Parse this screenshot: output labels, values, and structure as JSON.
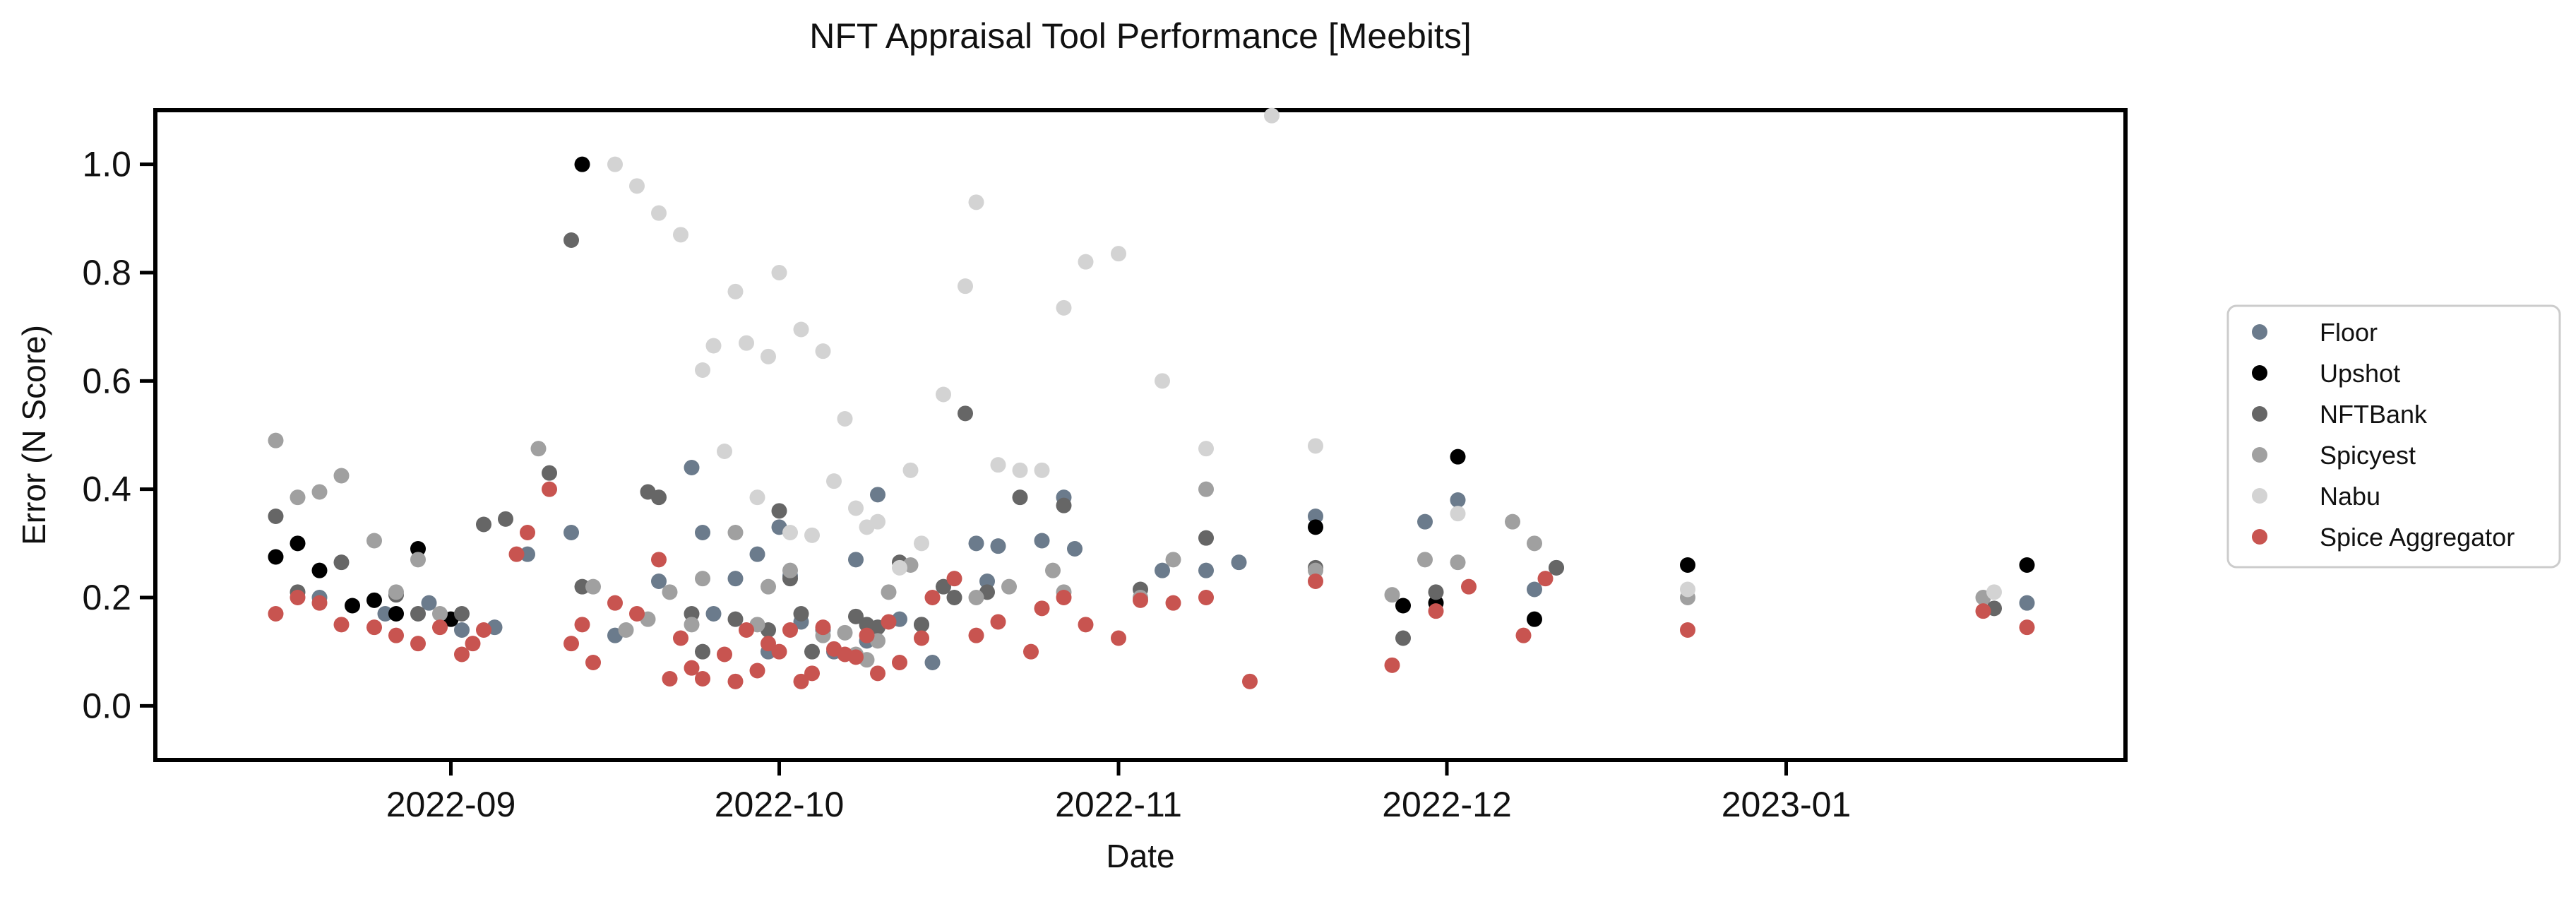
{
  "chart_data": {
    "type": "scatter",
    "title": "NFT Appraisal Tool Performance [Meebits]",
    "xlabel": "Date",
    "ylabel": "Error (N Score)",
    "xlim": [
      "2022-08-05",
      "2023-02-01"
    ],
    "ylim": [
      -0.1,
      1.1
    ],
    "x_ticks": [
      "2022-09-01",
      "2022-10-01",
      "2022-11-01",
      "2022-12-01",
      "2023-01-01"
    ],
    "x_tick_labels": [
      "2022-09",
      "2022-10",
      "2022-11",
      "2022-12",
      "2023-01"
    ],
    "y_ticks": [
      0.0,
      0.2,
      0.4,
      0.6,
      0.8,
      1.0
    ],
    "y_tick_labels": [
      "0.0",
      "0.2",
      "0.4",
      "0.6",
      "0.8",
      "1.0"
    ],
    "grid": false,
    "legend_position": "outside-right",
    "series": [
      {
        "name": "Floor",
        "color": "#6b7b8c",
        "points": [
          [
            "2022-08-20",
            0.2
          ],
          [
            "2022-08-26",
            0.17
          ],
          [
            "2022-08-30",
            0.19
          ],
          [
            "2022-09-02",
            0.14
          ],
          [
            "2022-09-05",
            0.145
          ],
          [
            "2022-09-08",
            0.28
          ],
          [
            "2022-09-12",
            0.32
          ],
          [
            "2022-09-16",
            0.13
          ],
          [
            "2022-09-20",
            0.23
          ],
          [
            "2022-09-23",
            0.44
          ],
          [
            "2022-09-24",
            0.32
          ],
          [
            "2022-09-25",
            0.17
          ],
          [
            "2022-09-27",
            0.235
          ],
          [
            "2022-09-29",
            0.28
          ],
          [
            "2022-09-30",
            0.1
          ],
          [
            "2022-10-01",
            0.33
          ],
          [
            "2022-10-02",
            0.24
          ],
          [
            "2022-10-03",
            0.155
          ],
          [
            "2022-10-05",
            0.14
          ],
          [
            "2022-10-06",
            0.1
          ],
          [
            "2022-10-08",
            0.27
          ],
          [
            "2022-10-09",
            0.12
          ],
          [
            "2022-10-10",
            0.39
          ],
          [
            "2022-10-12",
            0.16
          ],
          [
            "2022-10-14",
            0.15
          ],
          [
            "2022-10-15",
            0.08
          ],
          [
            "2022-10-19",
            0.3
          ],
          [
            "2022-10-20",
            0.23
          ],
          [
            "2022-10-21",
            0.295
          ],
          [
            "2022-10-25",
            0.305
          ],
          [
            "2022-10-27",
            0.385
          ],
          [
            "2022-10-28",
            0.29
          ],
          [
            "2022-11-05",
            0.25
          ],
          [
            "2022-11-09",
            0.25
          ],
          [
            "2022-11-12",
            0.265
          ],
          [
            "2022-11-19",
            0.35
          ],
          [
            "2022-11-29",
            0.34
          ],
          [
            "2022-12-02",
            0.38
          ],
          [
            "2022-12-09",
            0.215
          ],
          [
            "2022-12-11",
            0.255
          ],
          [
            "2023-01-23",
            0.19
          ]
        ]
      },
      {
        "name": "Upshot",
        "color": "#000000",
        "points": [
          [
            "2022-08-16",
            0.275
          ],
          [
            "2022-08-18",
            0.3
          ],
          [
            "2022-08-20",
            0.25
          ],
          [
            "2022-08-23",
            0.185
          ],
          [
            "2022-08-25",
            0.195
          ],
          [
            "2022-08-27",
            0.17
          ],
          [
            "2022-08-29",
            0.29
          ],
          [
            "2022-09-01",
            0.16
          ],
          [
            "2022-09-13",
            1.0
          ],
          [
            "2022-11-19",
            0.33
          ],
          [
            "2022-11-27",
            0.185
          ],
          [
            "2022-11-30",
            0.19
          ],
          [
            "2022-12-02",
            0.46
          ],
          [
            "2022-12-09",
            0.16
          ],
          [
            "2022-12-23",
            0.26
          ],
          [
            "2023-01-23",
            0.26
          ]
        ]
      },
      {
        "name": "NFTBank",
        "color": "#666666",
        "points": [
          [
            "2022-08-16",
            0.35
          ],
          [
            "2022-08-18",
            0.21
          ],
          [
            "2022-08-22",
            0.265
          ],
          [
            "2022-08-27",
            0.205
          ],
          [
            "2022-08-29",
            0.17
          ],
          [
            "2022-09-02",
            0.17
          ],
          [
            "2022-09-04",
            0.335
          ],
          [
            "2022-09-06",
            0.345
          ],
          [
            "2022-09-10",
            0.43
          ],
          [
            "2022-09-12",
            0.86
          ],
          [
            "2022-09-13",
            0.22
          ],
          [
            "2022-09-19",
            0.395
          ],
          [
            "2022-09-20",
            0.385
          ],
          [
            "2022-09-23",
            0.17
          ],
          [
            "2022-09-24",
            0.1
          ],
          [
            "2022-09-27",
            0.16
          ],
          [
            "2022-09-30",
            0.14
          ],
          [
            "2022-10-01",
            0.36
          ],
          [
            "2022-10-02",
            0.235
          ],
          [
            "2022-10-03",
            0.17
          ],
          [
            "2022-10-04",
            0.1
          ],
          [
            "2022-10-08",
            0.165
          ],
          [
            "2022-10-09",
            0.15
          ],
          [
            "2022-10-10",
            0.145
          ],
          [
            "2022-10-12",
            0.265
          ],
          [
            "2022-10-14",
            0.15
          ],
          [
            "2022-10-16",
            0.22
          ],
          [
            "2022-10-17",
            0.2
          ],
          [
            "2022-10-18",
            0.54
          ],
          [
            "2022-10-20",
            0.21
          ],
          [
            "2022-10-23",
            0.385
          ],
          [
            "2022-10-27",
            0.37
          ],
          [
            "2022-11-03",
            0.215
          ],
          [
            "2022-11-09",
            0.31
          ],
          [
            "2022-11-19",
            0.255
          ],
          [
            "2022-11-27",
            0.125
          ],
          [
            "2022-11-30",
            0.21
          ],
          [
            "2022-12-11",
            0.255
          ],
          [
            "2023-01-20",
            0.18
          ]
        ]
      },
      {
        "name": "Spicyest",
        "color": "#a0a0a0",
        "points": [
          [
            "2022-08-16",
            0.49
          ],
          [
            "2022-08-18",
            0.385
          ],
          [
            "2022-08-20",
            0.395
          ],
          [
            "2022-08-22",
            0.425
          ],
          [
            "2022-08-25",
            0.305
          ],
          [
            "2022-08-27",
            0.21
          ],
          [
            "2022-08-29",
            0.27
          ],
          [
            "2022-08-31",
            0.17
          ],
          [
            "2022-09-09",
            0.475
          ],
          [
            "2022-09-14",
            0.22
          ],
          [
            "2022-09-17",
            0.14
          ],
          [
            "2022-09-19",
            0.16
          ],
          [
            "2022-09-21",
            0.21
          ],
          [
            "2022-09-23",
            0.15
          ],
          [
            "2022-09-24",
            0.235
          ],
          [
            "2022-09-27",
            0.32
          ],
          [
            "2022-09-29",
            0.15
          ],
          [
            "2022-09-30",
            0.22
          ],
          [
            "2022-10-02",
            0.25
          ],
          [
            "2022-10-05",
            0.13
          ],
          [
            "2022-10-07",
            0.135
          ],
          [
            "2022-10-08",
            0.095
          ],
          [
            "2022-10-09",
            0.085
          ],
          [
            "2022-10-10",
            0.12
          ],
          [
            "2022-10-11",
            0.21
          ],
          [
            "2022-10-13",
            0.26
          ],
          [
            "2022-10-19",
            0.2
          ],
          [
            "2022-10-22",
            0.22
          ],
          [
            "2022-10-26",
            0.25
          ],
          [
            "2022-10-27",
            0.21
          ],
          [
            "2022-11-03",
            0.2
          ],
          [
            "2022-11-06",
            0.27
          ],
          [
            "2022-11-09",
            0.4
          ],
          [
            "2022-11-19",
            0.25
          ],
          [
            "2022-11-26",
            0.205
          ],
          [
            "2022-11-29",
            0.27
          ],
          [
            "2022-12-02",
            0.265
          ],
          [
            "2022-12-07",
            0.34
          ],
          [
            "2022-12-09",
            0.3
          ],
          [
            "2022-12-23",
            0.2
          ],
          [
            "2023-01-19",
            0.2
          ]
        ]
      },
      {
        "name": "Nabu",
        "color": "#d3d3d3",
        "points": [
          [
            "2022-09-16",
            1.0
          ],
          [
            "2022-09-18",
            0.96
          ],
          [
            "2022-09-20",
            0.91
          ],
          [
            "2022-09-22",
            0.87
          ],
          [
            "2022-09-24",
            0.62
          ],
          [
            "2022-09-25",
            0.665
          ],
          [
            "2022-09-26",
            0.47
          ],
          [
            "2022-09-27",
            0.765
          ],
          [
            "2022-09-28",
            0.67
          ],
          [
            "2022-09-29",
            0.385
          ],
          [
            "2022-09-30",
            0.645
          ],
          [
            "2022-10-01",
            0.8
          ],
          [
            "2022-10-02",
            0.32
          ],
          [
            "2022-10-03",
            0.695
          ],
          [
            "2022-10-04",
            0.315
          ],
          [
            "2022-10-05",
            0.655
          ],
          [
            "2022-10-06",
            0.415
          ],
          [
            "2022-10-07",
            0.53
          ],
          [
            "2022-10-08",
            0.365
          ],
          [
            "2022-10-09",
            0.33
          ],
          [
            "2022-10-10",
            0.34
          ],
          [
            "2022-10-12",
            0.255
          ],
          [
            "2022-10-13",
            0.435
          ],
          [
            "2022-10-14",
            0.3
          ],
          [
            "2022-10-16",
            0.575
          ],
          [
            "2022-10-18",
            0.775
          ],
          [
            "2022-10-19",
            0.93
          ],
          [
            "2022-10-21",
            0.445
          ],
          [
            "2022-10-23",
            0.435
          ],
          [
            "2022-10-25",
            0.435
          ],
          [
            "2022-10-27",
            0.735
          ],
          [
            "2022-10-29",
            0.82
          ],
          [
            "2022-11-01",
            0.835
          ],
          [
            "2022-11-05",
            0.6
          ],
          [
            "2022-11-09",
            0.475
          ],
          [
            "2022-11-15",
            1.09
          ],
          [
            "2022-11-19",
            0.48
          ],
          [
            "2022-12-02",
            0.355
          ],
          [
            "2022-12-23",
            0.215
          ],
          [
            "2023-01-20",
            0.21
          ]
        ]
      },
      {
        "name": "Spice Aggregator",
        "color": "#c85450",
        "points": [
          [
            "2022-08-16",
            0.17
          ],
          [
            "2022-08-18",
            0.2
          ],
          [
            "2022-08-20",
            0.19
          ],
          [
            "2022-08-22",
            0.15
          ],
          [
            "2022-08-25",
            0.145
          ],
          [
            "2022-08-27",
            0.13
          ],
          [
            "2022-08-29",
            0.115
          ],
          [
            "2022-08-31",
            0.145
          ],
          [
            "2022-09-02",
            0.095
          ],
          [
            "2022-09-03",
            0.115
          ],
          [
            "2022-09-04",
            0.14
          ],
          [
            "2022-09-07",
            0.28
          ],
          [
            "2022-09-08",
            0.32
          ],
          [
            "2022-09-10",
            0.4
          ],
          [
            "2022-09-12",
            0.115
          ],
          [
            "2022-09-13",
            0.15
          ],
          [
            "2022-09-14",
            0.08
          ],
          [
            "2022-09-16",
            0.19
          ],
          [
            "2022-09-18",
            0.17
          ],
          [
            "2022-09-20",
            0.27
          ],
          [
            "2022-09-21",
            0.05
          ],
          [
            "2022-09-22",
            0.125
          ],
          [
            "2022-09-23",
            0.07
          ],
          [
            "2022-09-24",
            0.05
          ],
          [
            "2022-09-26",
            0.095
          ],
          [
            "2022-09-27",
            0.045
          ],
          [
            "2022-09-28",
            0.14
          ],
          [
            "2022-09-29",
            0.065
          ],
          [
            "2022-09-30",
            0.115
          ],
          [
            "2022-10-01",
            0.1
          ],
          [
            "2022-10-02",
            0.14
          ],
          [
            "2022-10-03",
            0.045
          ],
          [
            "2022-10-04",
            0.06
          ],
          [
            "2022-10-05",
            0.145
          ],
          [
            "2022-10-06",
            0.105
          ],
          [
            "2022-10-07",
            0.095
          ],
          [
            "2022-10-08",
            0.09
          ],
          [
            "2022-10-09",
            0.13
          ],
          [
            "2022-10-10",
            0.06
          ],
          [
            "2022-10-11",
            0.155
          ],
          [
            "2022-10-12",
            0.08
          ],
          [
            "2022-10-14",
            0.125
          ],
          [
            "2022-10-15",
            0.2
          ],
          [
            "2022-10-17",
            0.235
          ],
          [
            "2022-10-19",
            0.13
          ],
          [
            "2022-10-21",
            0.155
          ],
          [
            "2022-10-24",
            0.1
          ],
          [
            "2022-10-25",
            0.18
          ],
          [
            "2022-10-27",
            0.2
          ],
          [
            "2022-10-29",
            0.15
          ],
          [
            "2022-11-01",
            0.125
          ],
          [
            "2022-11-03",
            0.195
          ],
          [
            "2022-11-06",
            0.19
          ],
          [
            "2022-11-09",
            0.2
          ],
          [
            "2022-11-13",
            0.045
          ],
          [
            "2022-11-19",
            0.23
          ],
          [
            "2022-11-26",
            0.075
          ],
          [
            "2022-11-30",
            0.175
          ],
          [
            "2022-12-03",
            0.22
          ],
          [
            "2022-12-08",
            0.13
          ],
          [
            "2022-12-10",
            0.235
          ],
          [
            "2022-12-23",
            0.14
          ],
          [
            "2023-01-19",
            0.175
          ],
          [
            "2023-01-23",
            0.145
          ]
        ]
      }
    ]
  }
}
